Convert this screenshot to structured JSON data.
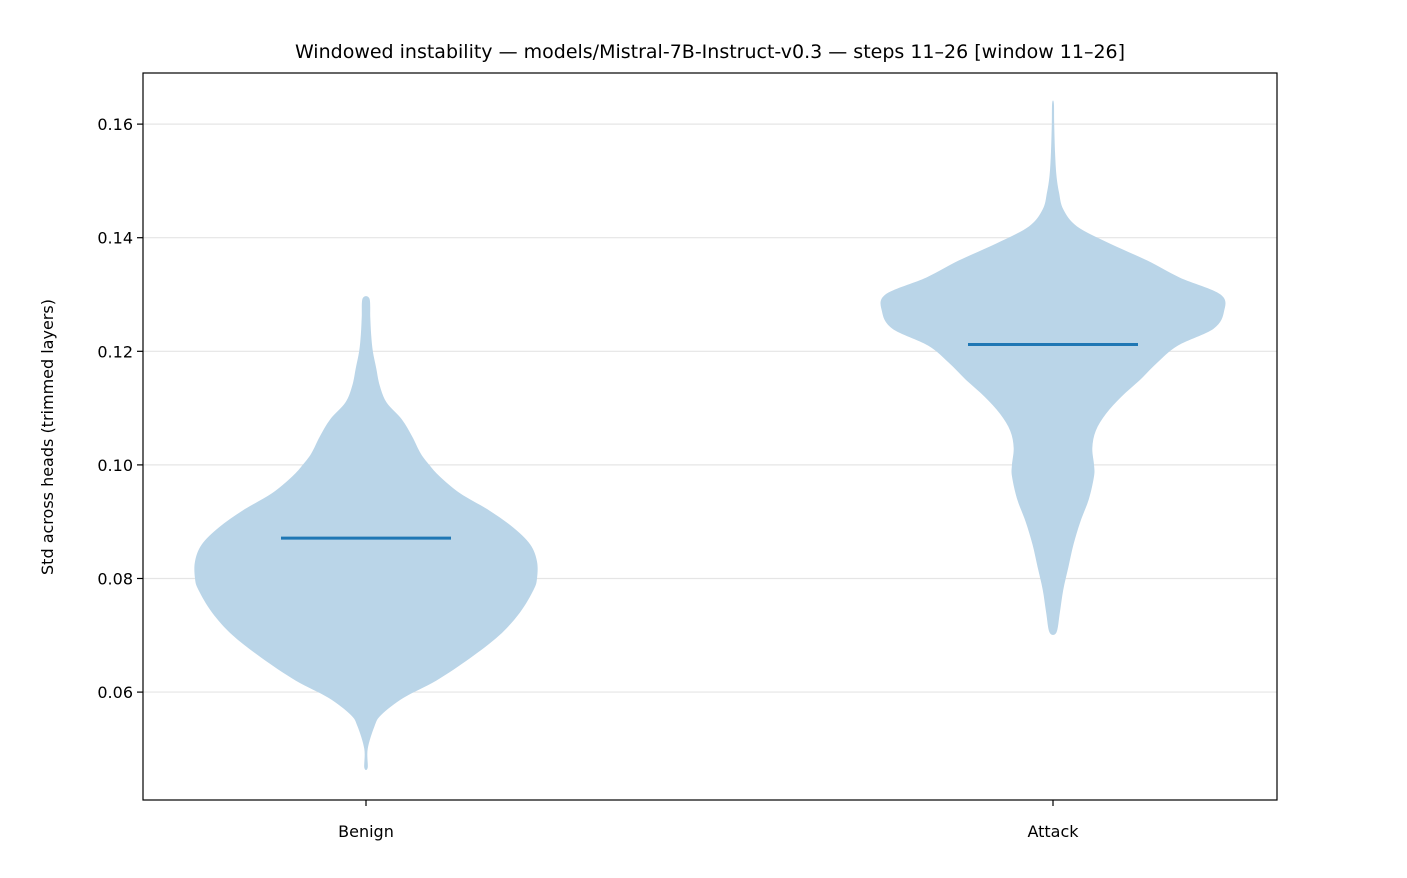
{
  "chart_data": {
    "type": "violin",
    "title": "Windowed instability — models/Mistral-7B-Instruct-v0.3 — steps 11–26  [window 11–26]",
    "xlabel": "",
    "ylabel": "Std across heads (trimmed layers)",
    "categories": [
      "Benign",
      "Attack"
    ],
    "ylim": [
      0.041,
      0.169
    ],
    "yticks": [
      0.06,
      0.08,
      0.1,
      0.12,
      0.14,
      0.16
    ],
    "ytick_labels": [
      "0.06",
      "0.08",
      "0.10",
      "0.12",
      "0.14",
      "0.16"
    ],
    "grid": "horizontal",
    "colors": {
      "body": "#bad5e8",
      "median": "#1f77b4",
      "grid": "#e5e5e5"
    },
    "violins": [
      {
        "category": "Benign",
        "min": 0.0467,
        "max": 0.1293,
        "median": 0.0871,
        "half_width": [
          [
            0.0467,
            0.01
          ],
          [
            0.05,
            0.01
          ],
          [
            0.054,
            0.05
          ],
          [
            0.056,
            0.09
          ],
          [
            0.059,
            0.22
          ],
          [
            0.062,
            0.41
          ],
          [
            0.066,
            0.61
          ],
          [
            0.07,
            0.78
          ],
          [
            0.074,
            0.9
          ],
          [
            0.078,
            0.98
          ],
          [
            0.08,
            1.0
          ],
          [
            0.083,
            1.0
          ],
          [
            0.086,
            0.96
          ],
          [
            0.089,
            0.86
          ],
          [
            0.092,
            0.72
          ],
          [
            0.095,
            0.55
          ],
          [
            0.098,
            0.43
          ],
          [
            0.1,
            0.37
          ],
          [
            0.102,
            0.32
          ],
          [
            0.105,
            0.27
          ],
          [
            0.108,
            0.21
          ],
          [
            0.111,
            0.12
          ],
          [
            0.114,
            0.08
          ],
          [
            0.117,
            0.06
          ],
          [
            0.12,
            0.04
          ],
          [
            0.123,
            0.03
          ],
          [
            0.126,
            0.025
          ],
          [
            0.1293,
            0.02
          ]
        ]
      },
      {
        "category": "Attack",
        "min": 0.0705,
        "max": 0.1637,
        "median": 0.1212,
        "half_width": [
          [
            0.0705,
            0.02
          ],
          [
            0.074,
            0.04
          ],
          [
            0.078,
            0.06
          ],
          [
            0.082,
            0.09
          ],
          [
            0.086,
            0.12
          ],
          [
            0.09,
            0.16
          ],
          [
            0.094,
            0.21
          ],
          [
            0.098,
            0.24
          ],
          [
            0.1,
            0.24
          ],
          [
            0.103,
            0.23
          ],
          [
            0.106,
            0.25
          ],
          [
            0.109,
            0.31
          ],
          [
            0.112,
            0.4
          ],
          [
            0.115,
            0.51
          ],
          [
            0.118,
            0.61
          ],
          [
            0.121,
            0.73
          ],
          [
            0.124,
            0.94
          ],
          [
            0.127,
            1.0
          ],
          [
            0.13,
            0.98
          ],
          [
            0.133,
            0.74
          ],
          [
            0.136,
            0.55
          ],
          [
            0.139,
            0.33
          ],
          [
            0.142,
            0.14
          ],
          [
            0.145,
            0.06
          ],
          [
            0.148,
            0.035
          ],
          [
            0.151,
            0.02
          ],
          [
            0.155,
            0.012
          ],
          [
            0.16,
            0.007
          ],
          [
            0.1637,
            0.005
          ]
        ]
      }
    ]
  }
}
